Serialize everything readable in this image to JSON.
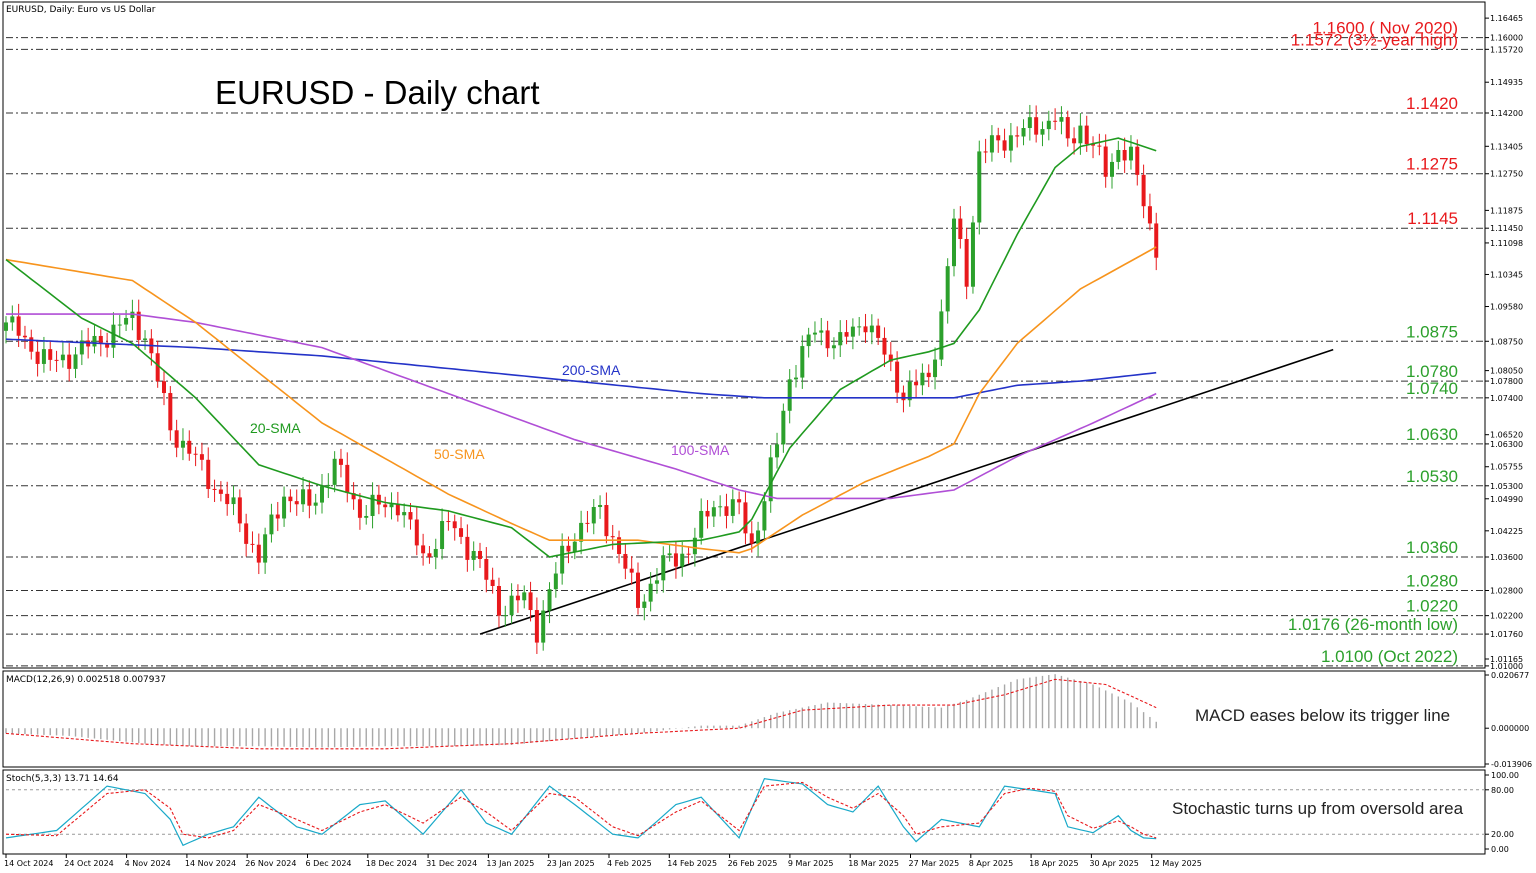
{
  "header": {
    "symbol_info": "EURUSD, Daily:  Euro vs US Dollar",
    "title": "EURUSD - Daily chart"
  },
  "colors": {
    "bull": "#2ca02c",
    "bear": "#e8191c",
    "sma20": "#1f9a1f",
    "sma50": "#f7941d",
    "sma100": "#b04fd6",
    "sma200": "#2433c8",
    "resistance": "#e8191c",
    "support": "#2ca02c",
    "trendline": "#000000",
    "macd_hist": "#a8a8a8",
    "macd_signal": "#e8191c",
    "stoch_main": "#19a9c9",
    "stoch_signal": "#e8191c"
  },
  "chart_data": {
    "type": "candlestick",
    "title": "EURUSD - Daily chart",
    "ylim": [
      1.0095,
      1.1685
    ],
    "price_ticks": [
      "1.16465",
      "1.16000",
      "1.15720",
      "1.14935",
      "1.14200",
      "1.13405",
      "1.12750",
      "1.11875",
      "1.11450",
      "1.11098",
      "1.10345",
      "1.09580",
      "1.08750",
      "1.08050",
      "1.07800",
      "1.07400",
      "1.06520",
      "1.06300",
      "1.05755",
      "1.05300",
      "1.04990",
      "1.04225",
      "1.03600",
      "1.02800",
      "1.02200",
      "1.01760",
      "1.01165",
      "1.01000"
    ],
    "date_labels": [
      "14 Oct 2024",
      "24 Oct 2024",
      "4 Nov 2024",
      "14 Nov 2024",
      "26 Nov 2024",
      "6 Dec 2024",
      "18 Dec 2024",
      "31 Dec 2024",
      "13 Jan 2025",
      "23 Jan 2025",
      "4 Feb 2025",
      "14 Feb 2025",
      "26 Feb 2025",
      "9 Mar 2025",
      "18 Mar 2025",
      "27 Mar 2025",
      "8 Apr 2025",
      "18 Apr 2025",
      "30 Apr 2025",
      "12 May 2025"
    ],
    "levels": [
      {
        "label": "1.1600 ( Nov 2020)",
        "value": 1.16,
        "kind": "resistance"
      },
      {
        "label": "1.1572 (3½-year high)",
        "value": 1.1572,
        "kind": "resistance"
      },
      {
        "label": "1.1420",
        "value": 1.142,
        "kind": "resistance"
      },
      {
        "label": "1.1275",
        "value": 1.1275,
        "kind": "resistance"
      },
      {
        "label": "1.1145",
        "value": 1.1145,
        "kind": "resistance"
      },
      {
        "label": "1.0875",
        "value": 1.0875,
        "kind": "support"
      },
      {
        "label": "1.0780",
        "value": 1.078,
        "kind": "support"
      },
      {
        "label": "1.0740",
        "value": 1.074,
        "kind": "support"
      },
      {
        "label": "1.0630",
        "value": 1.063,
        "kind": "support"
      },
      {
        "label": "1.0530",
        "value": 1.053,
        "kind": "support"
      },
      {
        "label": "1.0360",
        "value": 1.036,
        "kind": "support"
      },
      {
        "label": "1.0280",
        "value": 1.028,
        "kind": "support"
      },
      {
        "label": "1.0220",
        "value": 1.022,
        "kind": "support"
      },
      {
        "label": "1.0176 (26-month low)",
        "value": 1.0176,
        "kind": "support"
      },
      {
        "label": "1.0100 (Oct 2022)",
        "value": 1.01,
        "kind": "support"
      }
    ],
    "sma_labels": {
      "sma20": "20-SMA",
      "sma50": "50-SMA",
      "sma100": "100-SMA",
      "sma200": "200-SMA"
    },
    "close_keys": [
      [
        0,
        1.092
      ],
      [
        7,
        1.082
      ],
      [
        14,
        1.087
      ],
      [
        20,
        1.093
      ],
      [
        22,
        1.089
      ],
      [
        26,
        1.067
      ],
      [
        33,
        1.053
      ],
      [
        36,
        1.047
      ],
      [
        40,
        1.036
      ],
      [
        44,
        1.051
      ],
      [
        48,
        1.048
      ],
      [
        52,
        1.058
      ],
      [
        56,
        1.047
      ],
      [
        62,
        1.049
      ],
      [
        66,
        1.036
      ],
      [
        70,
        1.044
      ],
      [
        74,
        1.037
      ],
      [
        78,
        1.024
      ],
      [
        82,
        1.026
      ],
      [
        84,
        1.019
      ],
      [
        88,
        1.036
      ],
      [
        90,
        1.042
      ],
      [
        94,
        1.047
      ],
      [
        96,
        1.041
      ],
      [
        100,
        1.025
      ],
      [
        104,
        1.034
      ],
      [
        108,
        1.038
      ],
      [
        112,
        1.049
      ],
      [
        116,
        1.047
      ],
      [
        118,
        1.039
      ],
      [
        120,
        1.05
      ],
      [
        122,
        1.063
      ],
      [
        124,
        1.079
      ],
      [
        128,
        1.09
      ],
      [
        132,
        1.087
      ],
      [
        136,
        1.093
      ],
      [
        140,
        1.081
      ],
      [
        142,
        1.075
      ],
      [
        146,
        1.079
      ],
      [
        148,
        1.094
      ],
      [
        150,
        1.116
      ],
      [
        152,
        1.103
      ],
      [
        154,
        1.132
      ],
      [
        158,
        1.136
      ],
      [
        162,
        1.138
      ],
      [
        166,
        1.141
      ],
      [
        168,
        1.135
      ],
      [
        170,
        1.139
      ],
      [
        174,
        1.128
      ],
      [
        176,
        1.134
      ],
      [
        178,
        1.131
      ],
      [
        180,
        1.121
      ],
      [
        182,
        1.11
      ]
    ],
    "sma20_keys": [
      [
        0,
        1.107
      ],
      [
        12,
        1.093
      ],
      [
        20,
        1.087
      ],
      [
        30,
        1.074
      ],
      [
        40,
        1.058
      ],
      [
        50,
        1.053
      ],
      [
        60,
        1.049
      ],
      [
        70,
        1.047
      ],
      [
        80,
        1.043
      ],
      [
        86,
        1.036
      ],
      [
        96,
        1.039
      ],
      [
        110,
        1.04
      ],
      [
        116,
        1.042
      ],
      [
        118,
        1.045
      ],
      [
        124,
        1.062
      ],
      [
        132,
        1.076
      ],
      [
        140,
        1.083
      ],
      [
        146,
        1.085
      ],
      [
        150,
        1.087
      ],
      [
        154,
        1.095
      ],
      [
        160,
        1.113
      ],
      [
        166,
        1.129
      ],
      [
        170,
        1.134
      ],
      [
        176,
        1.136
      ],
      [
        180,
        1.134
      ],
      [
        182,
        1.133
      ]
    ],
    "sma50_keys": [
      [
        0,
        1.107
      ],
      [
        20,
        1.102
      ],
      [
        30,
        1.092
      ],
      [
        50,
        1.068
      ],
      [
        70,
        1.051
      ],
      [
        80,
        1.044
      ],
      [
        86,
        1.04
      ],
      [
        100,
        1.04
      ],
      [
        110,
        1.038
      ],
      [
        116,
        1.037
      ],
      [
        118,
        1.038
      ],
      [
        126,
        1.046
      ],
      [
        136,
        1.054
      ],
      [
        146,
        1.06
      ],
      [
        150,
        1.063
      ],
      [
        154,
        1.075
      ],
      [
        160,
        1.087
      ],
      [
        170,
        1.1
      ],
      [
        176,
        1.105
      ],
      [
        182,
        1.11
      ]
    ],
    "sma100_keys": [
      [
        0,
        1.094
      ],
      [
        20,
        1.094
      ],
      [
        30,
        1.092
      ],
      [
        50,
        1.086
      ],
      [
        70,
        1.075
      ],
      [
        90,
        1.064
      ],
      [
        106,
        1.057
      ],
      [
        116,
        1.052
      ],
      [
        122,
        1.05
      ],
      [
        140,
        1.05
      ],
      [
        150,
        1.052
      ],
      [
        160,
        1.06
      ],
      [
        172,
        1.068
      ],
      [
        182,
        1.075
      ]
    ],
    "sma200_keys": [
      [
        0,
        1.088
      ],
      [
        30,
        1.086
      ],
      [
        50,
        1.084
      ],
      [
        70,
        1.081
      ],
      [
        90,
        1.078
      ],
      [
        110,
        1.075
      ],
      [
        120,
        1.074
      ],
      [
        140,
        1.074
      ],
      [
        150,
        1.074
      ],
      [
        160,
        1.077
      ],
      [
        170,
        1.078
      ],
      [
        182,
        1.08
      ]
    ],
    "trendline": {
      "from": [
        75,
        1.0176
      ],
      "to": [
        210,
        1.0855
      ]
    },
    "macd": {
      "label": "MACD(12,26,9) 0.002518 0.007937",
      "ylim": [
        -0.013906,
        0.020677
      ],
      "ticks": [
        "0.020677",
        "0.000000",
        "-0.013906"
      ],
      "hist_keys": [
        [
          0,
          -0.002
        ],
        [
          10,
          -0.003
        ],
        [
          22,
          -0.006
        ],
        [
          30,
          -0.007
        ],
        [
          40,
          -0.007
        ],
        [
          50,
          -0.0075
        ],
        [
          60,
          -0.007
        ],
        [
          70,
          -0.007
        ],
        [
          80,
          -0.0065
        ],
        [
          90,
          -0.004
        ],
        [
          100,
          -0.002
        ],
        [
          110,
          0.001
        ],
        [
          116,
          0.001
        ],
        [
          122,
          0.006
        ],
        [
          130,
          0.01
        ],
        [
          140,
          0.009
        ],
        [
          148,
          0.008
        ],
        [
          152,
          0.011
        ],
        [
          160,
          0.019
        ],
        [
          166,
          0.021
        ],
        [
          172,
          0.017
        ],
        [
          178,
          0.01
        ],
        [
          182,
          0.0025
        ]
      ],
      "signal_keys": [
        [
          0,
          -0.002
        ],
        [
          20,
          -0.006
        ],
        [
          40,
          -0.008
        ],
        [
          60,
          -0.008
        ],
        [
          80,
          -0.006
        ],
        [
          100,
          -0.002
        ],
        [
          116,
          0.0
        ],
        [
          126,
          0.007
        ],
        [
          140,
          0.009
        ],
        [
          150,
          0.009
        ],
        [
          158,
          0.013
        ],
        [
          166,
          0.019
        ],
        [
          174,
          0.017
        ],
        [
          182,
          0.008
        ]
      ]
    },
    "stoch": {
      "label": "Stoch(5,3,3) 13.71 14.64",
      "ylim": [
        0,
        100
      ],
      "ticks": [
        "100.00",
        "80.00",
        "20.00",
        "0.00"
      ],
      "main_keys": [
        [
          0,
          15
        ],
        [
          8,
          25
        ],
        [
          16,
          85
        ],
        [
          22,
          75
        ],
        [
          26,
          40
        ],
        [
          28,
          5
        ],
        [
          32,
          20
        ],
        [
          36,
          30
        ],
        [
          40,
          70
        ],
        [
          46,
          30
        ],
        [
          50,
          20
        ],
        [
          56,
          60
        ],
        [
          60,
          65
        ],
        [
          66,
          20
        ],
        [
          72,
          80
        ],
        [
          76,
          35
        ],
        [
          80,
          20
        ],
        [
          86,
          85
        ],
        [
          90,
          60
        ],
        [
          96,
          20
        ],
        [
          100,
          15
        ],
        [
          106,
          60
        ],
        [
          110,
          70
        ],
        [
          116,
          15
        ],
        [
          120,
          95
        ],
        [
          126,
          88
        ],
        [
          130,
          60
        ],
        [
          134,
          50
        ],
        [
          138,
          85
        ],
        [
          142,
          30
        ],
        [
          144,
          10
        ],
        [
          148,
          40
        ],
        [
          154,
          30
        ],
        [
          158,
          85
        ],
        [
          162,
          80
        ],
        [
          166,
          75
        ],
        [
          168,
          30
        ],
        [
          172,
          22
        ],
        [
          176,
          45
        ],
        [
          178,
          25
        ],
        [
          180,
          15
        ],
        [
          182,
          14
        ]
      ],
      "signal_keys": [
        [
          0,
          20
        ],
        [
          8,
          18
        ],
        [
          16,
          75
        ],
        [
          22,
          80
        ],
        [
          26,
          55
        ],
        [
          28,
          20
        ],
        [
          32,
          15
        ],
        [
          36,
          25
        ],
        [
          40,
          60
        ],
        [
          46,
          40
        ],
        [
          50,
          25
        ],
        [
          56,
          50
        ],
        [
          60,
          60
        ],
        [
          66,
          35
        ],
        [
          72,
          70
        ],
        [
          76,
          50
        ],
        [
          80,
          25
        ],
        [
          86,
          75
        ],
        [
          90,
          70
        ],
        [
          96,
          30
        ],
        [
          100,
          18
        ],
        [
          106,
          50
        ],
        [
          110,
          65
        ],
        [
          116,
          25
        ],
        [
          120,
          85
        ],
        [
          126,
          90
        ],
        [
          130,
          70
        ],
        [
          134,
          55
        ],
        [
          138,
          75
        ],
        [
          142,
          45
        ],
        [
          144,
          20
        ],
        [
          148,
          30
        ],
        [
          154,
          35
        ],
        [
          158,
          75
        ],
        [
          162,
          82
        ],
        [
          166,
          78
        ],
        [
          168,
          45
        ],
        [
          172,
          28
        ],
        [
          176,
          38
        ],
        [
          178,
          30
        ],
        [
          180,
          20
        ],
        [
          182,
          15
        ]
      ]
    }
  },
  "annotations": {
    "macd_note": "MACD eases below its trigger line",
    "stoch_note": "Stochastic turns up from oversold area"
  }
}
